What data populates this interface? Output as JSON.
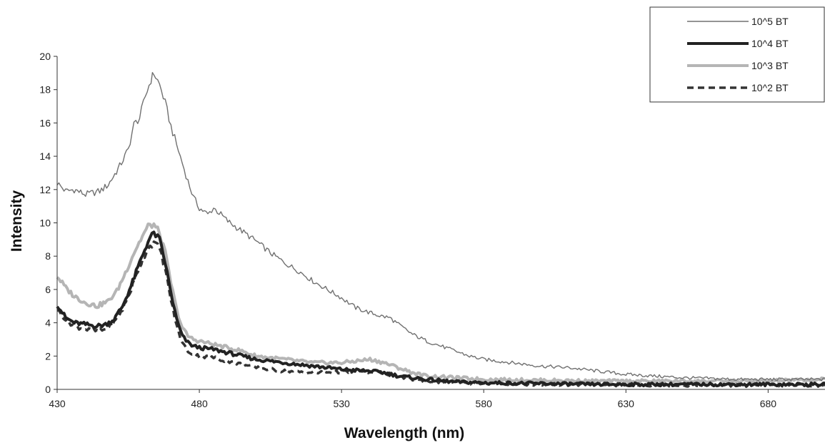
{
  "chart_data": {
    "type": "line",
    "title": "",
    "xlabel": "Wavelength (nm)",
    "ylabel": "Intensity",
    "xlim": [
      430,
      700
    ],
    "ylim": [
      0,
      20
    ],
    "x_ticks": [
      430,
      480,
      530,
      580,
      630,
      680
    ],
    "y_ticks": [
      0,
      2,
      4,
      6,
      8,
      10,
      12,
      14,
      16,
      18,
      20
    ],
    "grid": false,
    "legend_position": "top-right",
    "series": [
      {
        "name": "10^5 BT",
        "color": "#707070",
        "style": "thin-solid",
        "points": [
          [
            430,
            12.4
          ],
          [
            433,
            11.9
          ],
          [
            436,
            12.0
          ],
          [
            440,
            11.7
          ],
          [
            445,
            11.9
          ],
          [
            448,
            12.3
          ],
          [
            452,
            13.4
          ],
          [
            455,
            14.4
          ],
          [
            457,
            15.9
          ],
          [
            459,
            16.3
          ],
          [
            461,
            17.6
          ],
          [
            463,
            18.6
          ],
          [
            464,
            19.0
          ],
          [
            466,
            18.3
          ],
          [
            468,
            17.2
          ],
          [
            470,
            15.8
          ],
          [
            472,
            14.7
          ],
          [
            474,
            13.6
          ],
          [
            476,
            12.5
          ],
          [
            478,
            11.5
          ],
          [
            480,
            10.9
          ],
          [
            483,
            10.5
          ],
          [
            485,
            10.9
          ],
          [
            487,
            10.6
          ],
          [
            490,
            10.1
          ],
          [
            495,
            9.5
          ],
          [
            500,
            8.9
          ],
          [
            505,
            8.2
          ],
          [
            510,
            7.6
          ],
          [
            515,
            7.1
          ],
          [
            520,
            6.5
          ],
          [
            525,
            6.0
          ],
          [
            530,
            5.5
          ],
          [
            535,
            4.9
          ],
          [
            540,
            4.6
          ],
          [
            544,
            4.4
          ],
          [
            547,
            4.3
          ],
          [
            550,
            3.9
          ],
          [
            555,
            3.3
          ],
          [
            560,
            2.9
          ],
          [
            565,
            2.6
          ],
          [
            570,
            2.3
          ],
          [
            575,
            2.0
          ],
          [
            580,
            1.8
          ],
          [
            590,
            1.6
          ],
          [
            600,
            1.4
          ],
          [
            610,
            1.3
          ],
          [
            620,
            1.1
          ],
          [
            630,
            0.9
          ],
          [
            640,
            0.8
          ],
          [
            650,
            0.7
          ],
          [
            670,
            0.6
          ],
          [
            700,
            0.6
          ]
        ]
      },
      {
        "name": "10^4 BT",
        "color": "#222222",
        "style": "thick-solid",
        "points": [
          [
            430,
            5.1
          ],
          [
            433,
            4.3
          ],
          [
            436,
            4.0
          ],
          [
            440,
            3.9
          ],
          [
            444,
            3.8
          ],
          [
            447,
            3.9
          ],
          [
            450,
            4.2
          ],
          [
            453,
            5.0
          ],
          [
            456,
            6.2
          ],
          [
            459,
            7.6
          ],
          [
            462,
            8.9
          ],
          [
            464,
            9.4
          ],
          [
            466,
            9.0
          ],
          [
            468,
            7.6
          ],
          [
            470,
            5.8
          ],
          [
            472,
            4.2
          ],
          [
            474,
            3.2
          ],
          [
            476,
            2.8
          ],
          [
            478,
            2.6
          ],
          [
            480,
            2.5
          ],
          [
            485,
            2.4
          ],
          [
            490,
            2.2
          ],
          [
            495,
            2.0
          ],
          [
            500,
            1.8
          ],
          [
            505,
            1.7
          ],
          [
            510,
            1.6
          ],
          [
            515,
            1.5
          ],
          [
            520,
            1.4
          ],
          [
            530,
            1.2
          ],
          [
            540,
            1.1
          ],
          [
            545,
            1.0
          ],
          [
            550,
            0.8
          ],
          [
            555,
            0.7
          ],
          [
            560,
            0.6
          ],
          [
            570,
            0.45
          ],
          [
            580,
            0.4
          ],
          [
            600,
            0.35
          ],
          [
            620,
            0.3
          ],
          [
            650,
            0.3
          ],
          [
            700,
            0.3
          ]
        ]
      },
      {
        "name": "10^3 BT",
        "color": "#b5b5b5",
        "style": "thick-solid",
        "points": [
          [
            430,
            6.8
          ],
          [
            433,
            6.1
          ],
          [
            436,
            5.6
          ],
          [
            440,
            5.2
          ],
          [
            444,
            5.0
          ],
          [
            448,
            5.3
          ],
          [
            451,
            5.9
          ],
          [
            454,
            7.0
          ],
          [
            457,
            8.2
          ],
          [
            460,
            9.2
          ],
          [
            462,
            9.8
          ],
          [
            464,
            9.9
          ],
          [
            466,
            9.4
          ],
          [
            468,
            8.2
          ],
          [
            470,
            6.4
          ],
          [
            472,
            4.8
          ],
          [
            474,
            3.7
          ],
          [
            476,
            3.2
          ],
          [
            478,
            3.0
          ],
          [
            480,
            2.9
          ],
          [
            485,
            2.7
          ],
          [
            490,
            2.5
          ],
          [
            495,
            2.3
          ],
          [
            500,
            2.0
          ],
          [
            505,
            1.9
          ],
          [
            510,
            1.8
          ],
          [
            515,
            1.7
          ],
          [
            520,
            1.6
          ],
          [
            525,
            1.6
          ],
          [
            530,
            1.6
          ],
          [
            535,
            1.7
          ],
          [
            540,
            1.8
          ],
          [
            545,
            1.6
          ],
          [
            550,
            1.3
          ],
          [
            555,
            1.0
          ],
          [
            560,
            0.8
          ],
          [
            570,
            0.7
          ],
          [
            580,
            0.6
          ],
          [
            600,
            0.55
          ],
          [
            620,
            0.5
          ],
          [
            650,
            0.5
          ],
          [
            680,
            0.5
          ],
          [
            700,
            0.6
          ]
        ]
      },
      {
        "name": "10^2 BT",
        "color": "#333333",
        "style": "dashed",
        "points": [
          [
            430,
            4.8
          ],
          [
            433,
            4.2
          ],
          [
            436,
            3.8
          ],
          [
            440,
            3.6
          ],
          [
            444,
            3.5
          ],
          [
            447,
            3.6
          ],
          [
            450,
            4.0
          ],
          [
            453,
            4.8
          ],
          [
            456,
            6.0
          ],
          [
            459,
            7.4
          ],
          [
            462,
            8.5
          ],
          [
            464,
            8.8
          ],
          [
            466,
            8.5
          ],
          [
            468,
            7.2
          ],
          [
            470,
            5.4
          ],
          [
            472,
            3.8
          ],
          [
            474,
            2.8
          ],
          [
            476,
            2.3
          ],
          [
            478,
            2.1
          ],
          [
            480,
            2.0
          ],
          [
            485,
            1.9
          ],
          [
            490,
            1.7
          ],
          [
            495,
            1.5
          ],
          [
            500,
            1.3
          ],
          [
            505,
            1.2
          ],
          [
            510,
            1.1
          ],
          [
            520,
            1.0
          ],
          [
            530,
            1.05
          ],
          [
            540,
            1.05
          ],
          [
            545,
            1.0
          ],
          [
            550,
            0.8
          ],
          [
            555,
            0.6
          ],
          [
            560,
            0.5
          ],
          [
            570,
            0.4
          ],
          [
            580,
            0.35
          ],
          [
            600,
            0.3
          ],
          [
            650,
            0.25
          ],
          [
            700,
            0.25
          ]
        ]
      }
    ]
  }
}
